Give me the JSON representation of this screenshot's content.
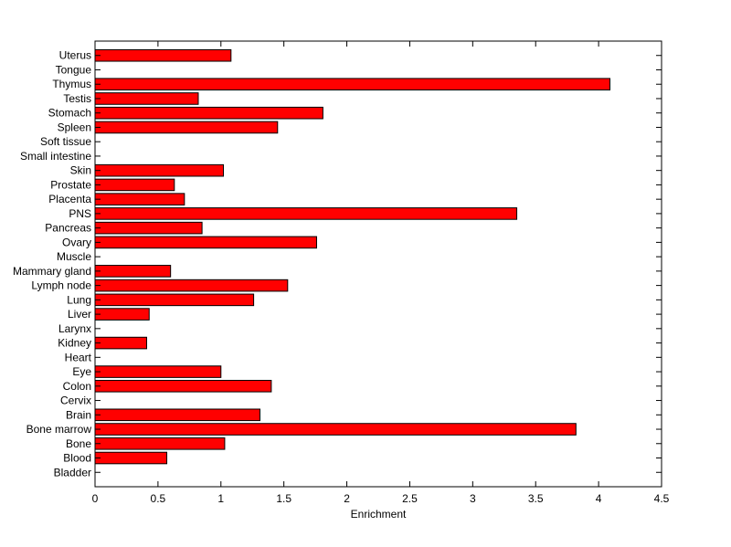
{
  "chart_data": {
    "type": "bar",
    "orientation": "horizontal",
    "xlabel": "Enrichment",
    "xlim": [
      0,
      4.5
    ],
    "xticks": [
      0,
      0.5,
      1,
      1.5,
      2,
      2.5,
      3,
      3.5,
      4,
      4.5
    ],
    "xtick_labels": [
      "0",
      "0.5",
      "1",
      "1.5",
      "2",
      "2.5",
      "3",
      "3.5",
      "4",
      "4.5"
    ],
    "grid": false,
    "bar_color": "#ff0000",
    "categories": [
      "Uterus",
      "Tongue",
      "Thymus",
      "Testis",
      "Stomach",
      "Spleen",
      "Soft tissue",
      "Small intestine",
      "Skin",
      "Prostate",
      "Placenta",
      "PNS",
      "Pancreas",
      "Ovary",
      "Muscle",
      "Mammary gland",
      "Lymph node",
      "Lung",
      "Liver",
      "Larynx",
      "Kidney",
      "Heart",
      "Eye",
      "Colon",
      "Cervix",
      "Brain",
      "Bone marrow",
      "Bone",
      "Blood",
      "Bladder"
    ],
    "values": [
      1.08,
      0,
      4.09,
      0.82,
      1.81,
      1.45,
      0,
      0,
      1.02,
      0.63,
      0.71,
      3.35,
      0.85,
      1.76,
      0,
      0.6,
      1.53,
      1.26,
      0.43,
      0,
      0.41,
      0,
      1.0,
      1.4,
      0,
      1.31,
      3.82,
      1.03,
      0.57,
      0
    ]
  }
}
